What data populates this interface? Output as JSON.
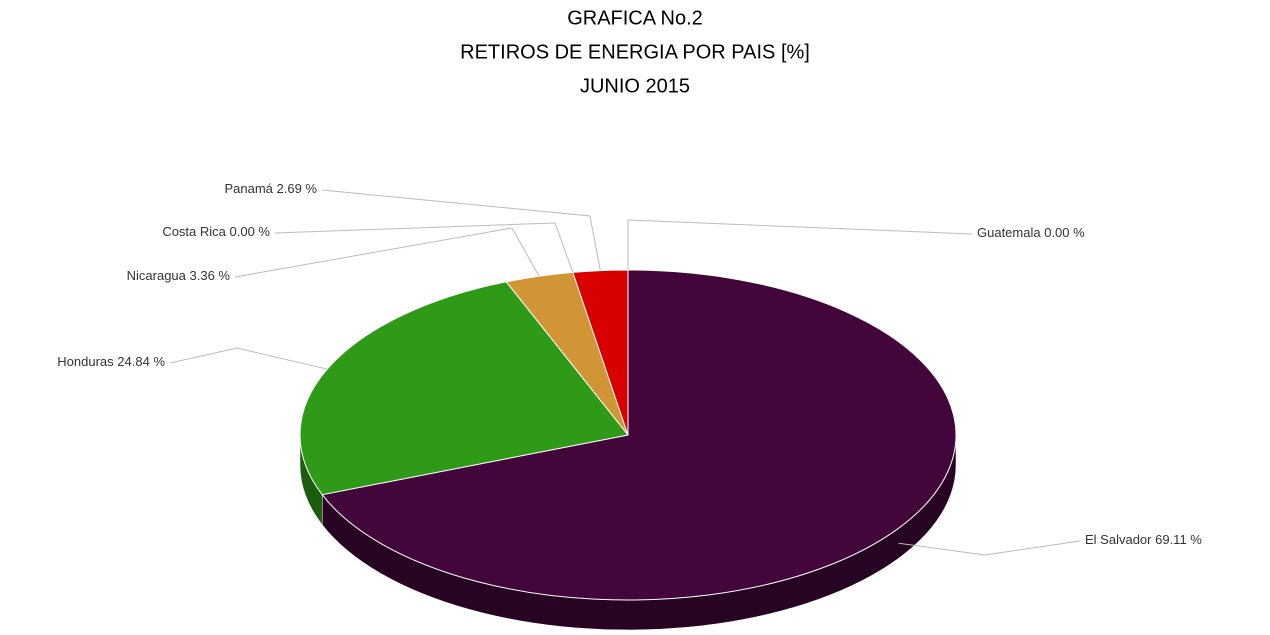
{
  "chart_data": {
    "type": "pie",
    "title": "GRAFICA No.2",
    "subtitle": "RETIROS DE ENERGIA POR PAIS [%]",
    "date": "JUNIO 2015",
    "categories": [
      "Guatemala",
      "El Salvador",
      "Honduras",
      "Nicaragua",
      "Costa Rica",
      "Panamá"
    ],
    "values": [
      0.0,
      69.11,
      24.84,
      3.36,
      0.0,
      2.69
    ],
    "value_labels": [
      "0.00 %",
      "69.11 %",
      "24.84 %",
      "3.36 %",
      "0.00 %",
      "2.69 %"
    ],
    "colors": [
      "#3366cc",
      "#43063a",
      "#2e9a18",
      "#d29535",
      "#888888",
      "#d90000"
    ]
  }
}
